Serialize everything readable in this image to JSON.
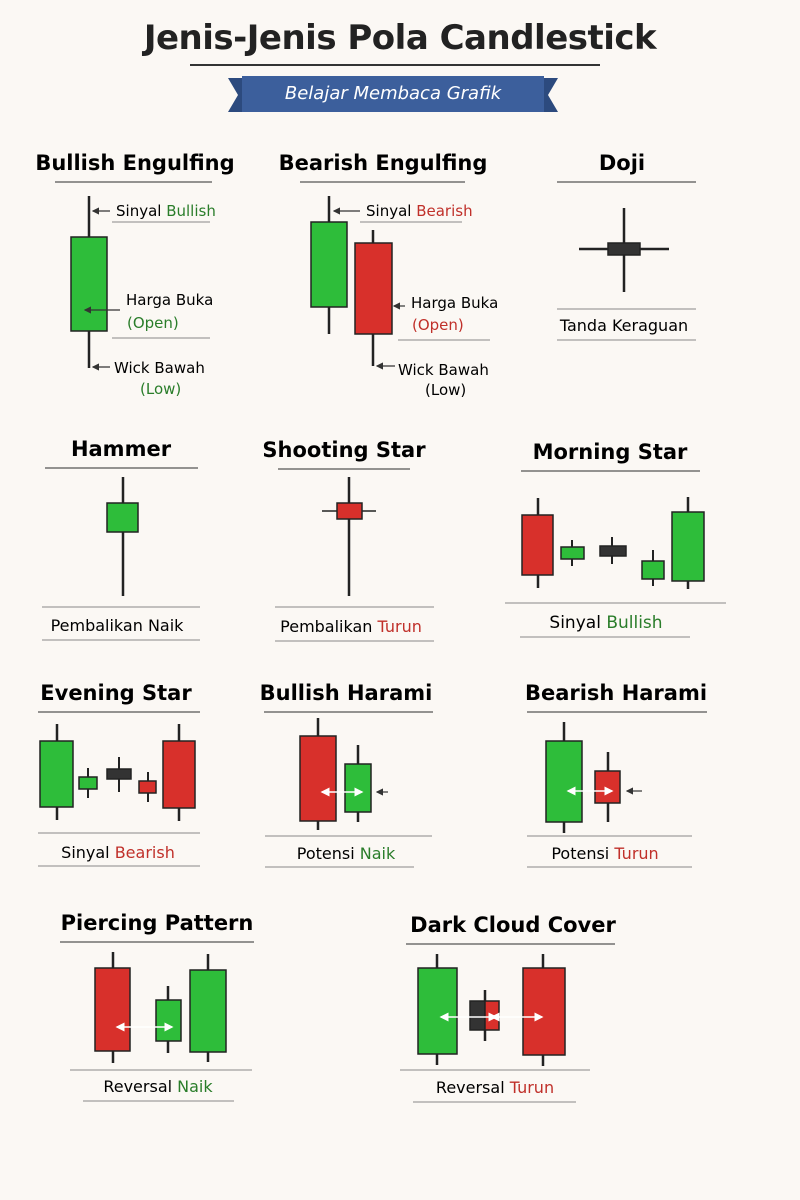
{
  "header": {
    "title": "Jenis-Jenis Pola Candlestick",
    "subtitle": "Belajar Membaca Grafik"
  },
  "colors": {
    "green": "#2ebd3a",
    "red": "#d8302b",
    "black": "#333333",
    "text_green": "#2a7d2a",
    "text_red": "#c0302a",
    "ribbon": "#3c5f9c"
  },
  "patterns": {
    "bullish_engulfing": {
      "name": "Bullish Engulfing",
      "annotations": {
        "signal_prefix": "Sinyal ",
        "signal_word": "Bullish",
        "open_label": "Harga Buka",
        "open_sub": "(Open)",
        "low_label": "Wick Bawah",
        "low_sub": "(Low)"
      }
    },
    "bearish_engulfing": {
      "name": "Bearish Engulfing",
      "annotations": {
        "signal_prefix": "Sinyal ",
        "signal_word": "Bearish",
        "open_label": "Harga Buka",
        "open_sub": "(Open)",
        "low_label": "Wick Bawah",
        "low_sub": "(Low)"
      }
    },
    "doji": {
      "name": "Doji",
      "caption": "Tanda Keraguan"
    },
    "hammer": {
      "name": "Hammer",
      "caption": "Pembalikan Naik"
    },
    "shooting_star": {
      "name": "Shooting Star",
      "caption_prefix": "Pembalikan ",
      "caption_word": "Turun"
    },
    "morning_star": {
      "name": "Morning Star",
      "caption_prefix": "Sinyal ",
      "caption_word": "Bullish"
    },
    "evening_star": {
      "name": "Evening Star",
      "caption_prefix": "Sinyal ",
      "caption_word": "Bearish"
    },
    "bullish_harami": {
      "name": "Bullish Harami",
      "caption_prefix": "Potensi ",
      "caption_word": "Naik"
    },
    "bearish_harami": {
      "name": "Bearish Harami",
      "caption_prefix": "Potensi ",
      "caption_word": "Turun"
    },
    "piercing_pattern": {
      "name": "Piercing Pattern",
      "caption_prefix": "Reversal ",
      "caption_word": "Naik"
    },
    "dark_cloud_cover": {
      "name": "Dark Cloud Cover",
      "caption_prefix": "Reversal ",
      "caption_word": "Turun"
    }
  }
}
